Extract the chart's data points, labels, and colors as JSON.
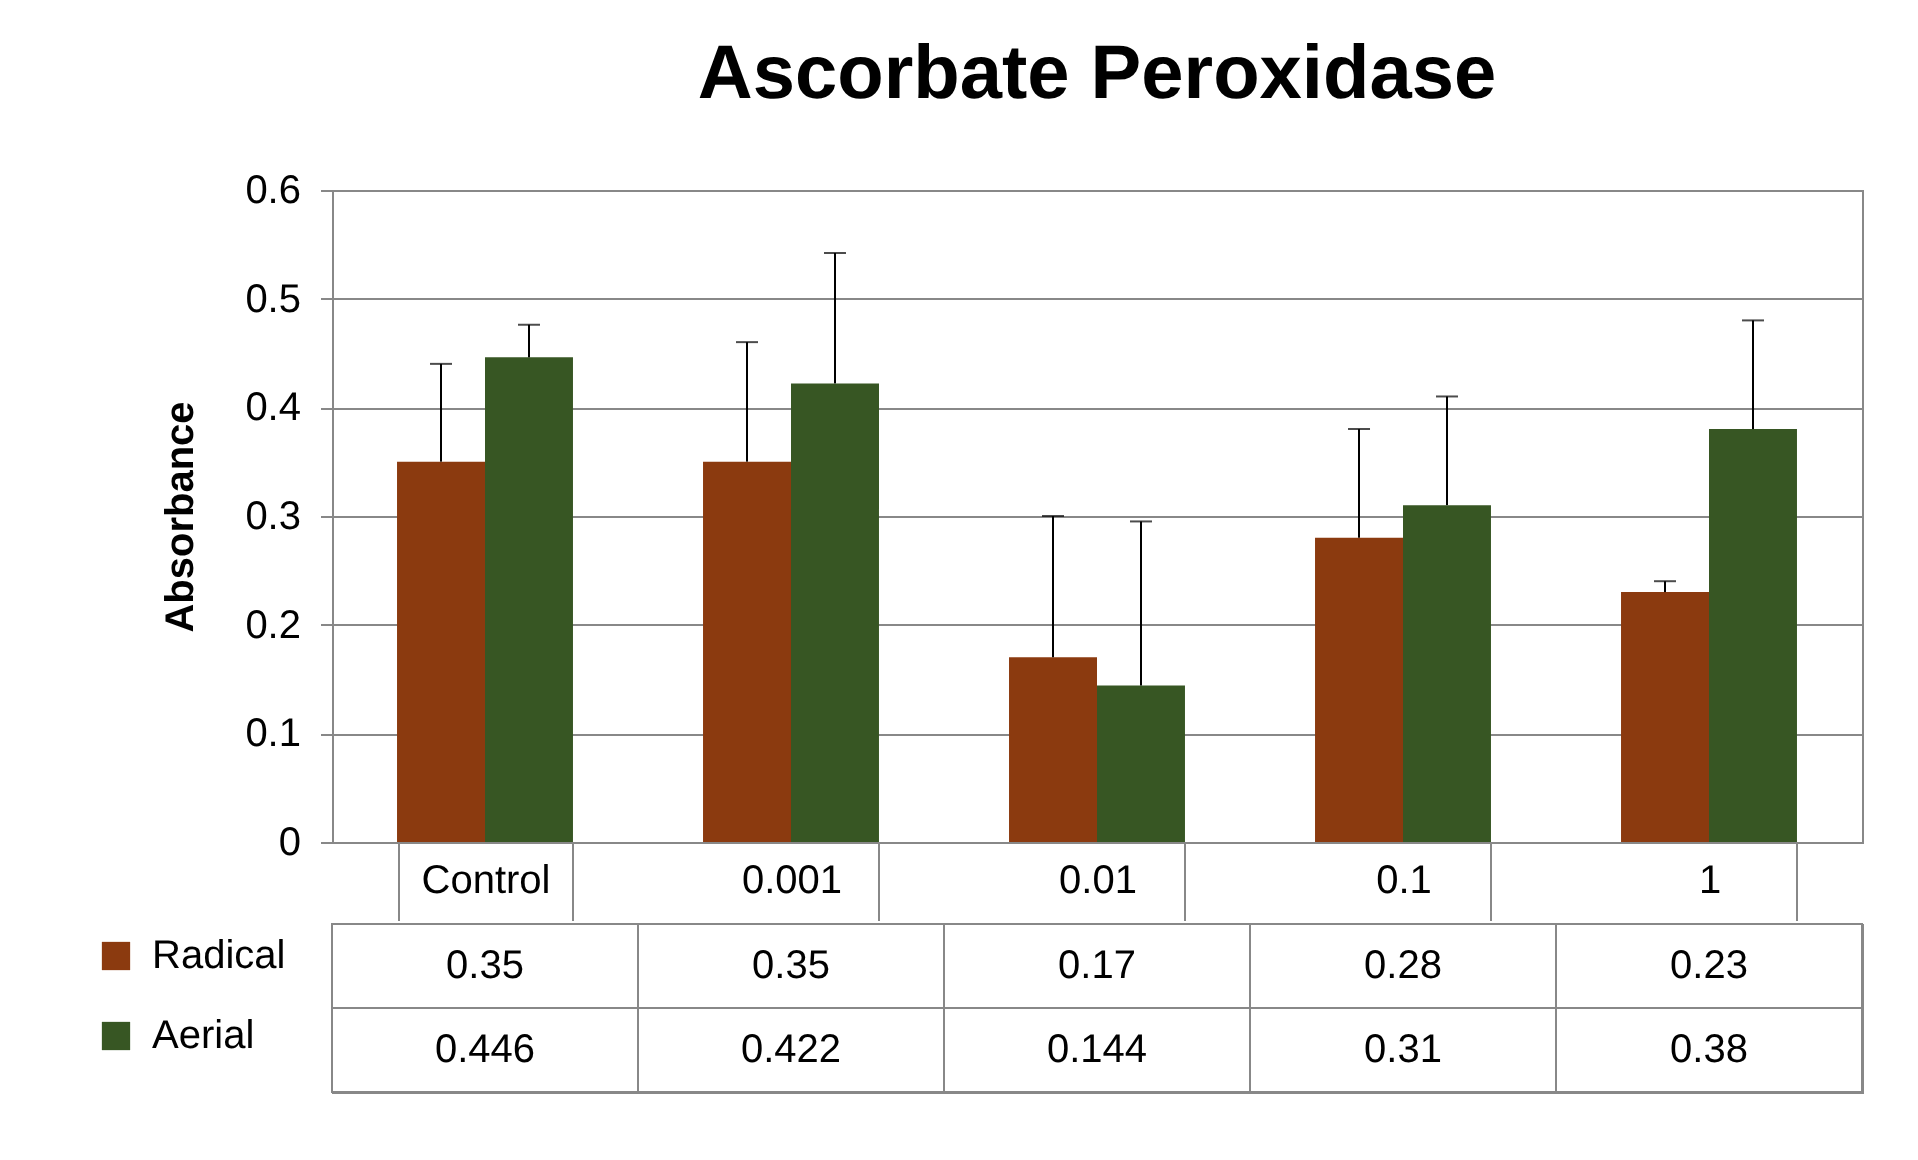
{
  "chart_data": {
    "type": "bar",
    "title": "Ascorbate Peroxidase",
    "ylabel": "Absorbance",
    "categories": [
      "Control",
      "0.001",
      "0.01",
      "0.1",
      "1"
    ],
    "series": [
      {
        "name": "Radical",
        "color": "#8b3a0f",
        "values": [
          0.35,
          0.35,
          0.17,
          0.28,
          0.23
        ],
        "errors": [
          [
            0.35,
            0.44
          ],
          [
            0.35,
            0.46
          ],
          [
            0.17,
            0.3
          ],
          [
            0.28,
            0.38
          ],
          [
            0.23,
            0.24
          ]
        ]
      },
      {
        "name": "Aerial",
        "color": "#375623",
        "values": [
          0.446,
          0.422,
          0.144,
          0.31,
          0.38
        ],
        "errors": [
          [
            0.446,
            0.476
          ],
          [
            0.422,
            0.542
          ],
          [
            0.144,
            0.295
          ],
          [
            0.31,
            0.41
          ],
          [
            0.38,
            0.48
          ]
        ]
      }
    ],
    "ylim": [
      0,
      0.6
    ],
    "yticks": [
      0,
      0.1,
      0.2,
      0.3,
      0.4,
      0.5,
      0.6
    ],
    "grid": "y",
    "legend": "bottom left",
    "data_labels": true
  }
}
